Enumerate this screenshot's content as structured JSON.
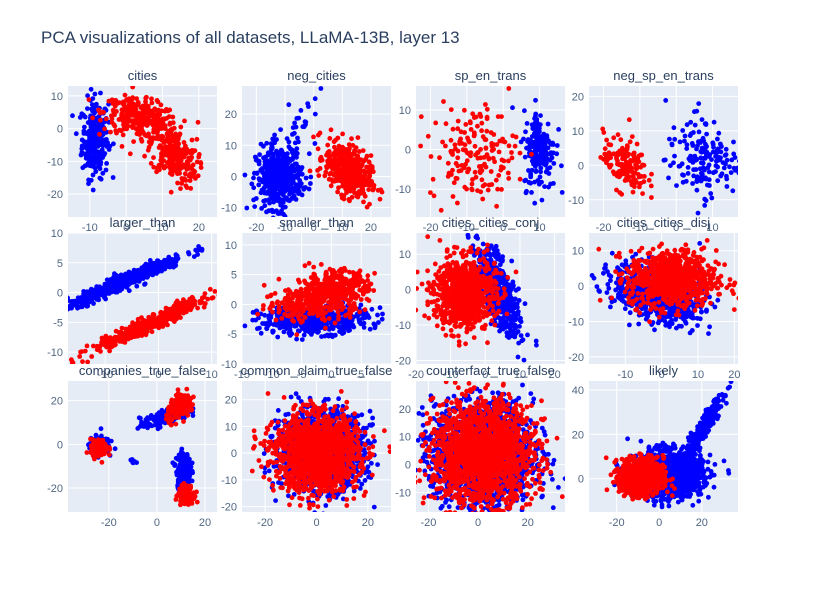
{
  "chart_data": {
    "title": "PCA visualizations of all datasets, LLaMA-13B, layer 13",
    "type": "scatter",
    "colors": {
      "true": "#0000ff",
      "false": "#ff0000",
      "panel_bg": "#e5ecf6",
      "grid": "#ffffff",
      "title": "#2a3f5f",
      "tick": "#506784"
    },
    "panels": [
      {
        "name": "cities",
        "xlim": [
          -16,
          25
        ],
        "ylim": [
          -27,
          13
        ],
        "xticks": [
          -10,
          0,
          10,
          20
        ],
        "yticks": [
          -20,
          -10,
          0,
          10
        ],
        "series": [
          {
            "label": "true",
            "clusters": [
              {
                "cx": -8.5,
                "cy": -3,
                "sx": 1.8,
                "sy": 6,
                "n": 260,
                "r": 0
              }
            ]
          },
          {
            "label": "false",
            "clusters": [
              {
                "cx": 4,
                "cy": 3,
                "sx": 5,
                "sy": 3,
                "n": 300,
                "r": -0.35
              },
              {
                "cx": 13,
                "cy": -8,
                "sx": 3.2,
                "sy": 4.5,
                "n": 250,
                "r": -0.4
              }
            ]
          }
        ]
      },
      {
        "name": "neg_cities",
        "xlim": [
          -25,
          27
        ],
        "ylim": [
          -13,
          29
        ],
        "xticks": [
          -20,
          -10,
          0,
          10,
          20
        ],
        "yticks": [
          -10,
          0,
          10,
          20
        ],
        "series": [
          {
            "label": "true",
            "clusters": [
              {
                "cx": -12,
                "cy": 0,
                "sx": 4,
                "sy": 5,
                "n": 450,
                "r": 0.1
              },
              {
                "cx": -4,
                "cy": 17,
                "sx": 4,
                "sy": 4,
                "n": 25,
                "r": 0.5
              }
            ]
          },
          {
            "label": "false",
            "clusters": [
              {
                "cx": 12,
                "cy": 2,
                "sx": 4,
                "sy": 4.5,
                "n": 420,
                "r": -0.4
              }
            ]
          }
        ]
      },
      {
        "name": "sp_en_trans",
        "xlim": [
          -24,
          17
        ],
        "ylim": [
          -17,
          16
        ],
        "xticks": [
          -20,
          -10,
          0,
          10
        ],
        "yticks": [
          -10,
          0,
          10
        ],
        "series": [
          {
            "label": "true",
            "clusters": [
              {
                "cx": 10,
                "cy": 0,
                "sx": 2.2,
                "sy": 5,
                "n": 180,
                "r": 0
              }
            ]
          },
          {
            "label": "false",
            "clusters": [
              {
                "cx": -8,
                "cy": -1,
                "sx": 6,
                "sy": 6,
                "n": 170,
                "r": 0
              }
            ]
          }
        ]
      },
      {
        "name": "neg_sp_en_trans",
        "xlim": [
          -24,
          17
        ],
        "ylim": [
          -15,
          23
        ],
        "xticks": [
          -20,
          -10,
          0,
          10
        ],
        "yticks": [
          -10,
          0,
          10,
          20
        ],
        "series": [
          {
            "label": "true",
            "clusters": [
              {
                "cx": 7,
                "cy": 1,
                "sx": 5,
                "sy": 5,
                "n": 160,
                "r": 0
              },
              {
                "cx": 7,
                "cy": 14,
                "sx": 2,
                "sy": 2.5,
                "n": 10,
                "r": 0
              }
            ]
          },
          {
            "label": "false",
            "clusters": [
              {
                "cx": -14,
                "cy": 0,
                "sx": 3,
                "sy": 4,
                "n": 150,
                "r": -0.3
              }
            ]
          }
        ]
      },
      {
        "name": "larger_than",
        "xlim": [
          -17,
          11
        ],
        "ylim": [
          -12,
          10
        ],
        "xticks": [
          -10,
          0,
          10
        ],
        "yticks": [
          -10,
          -5,
          0,
          5,
          10
        ],
        "series": [
          {
            "label": "true",
            "clusters": [
              {
                "cx": -6,
                "cy": 2,
                "sx": 5.5,
                "sy": 2.2,
                "n": 500,
                "r": 0.96
              }
            ]
          },
          {
            "label": "false",
            "clusters": [
              {
                "cx": -1,
                "cy": -5,
                "sx": 5.5,
                "sy": 2.3,
                "n": 500,
                "r": 0.96
              }
            ]
          }
        ]
      },
      {
        "name": "smaller_than",
        "xlim": [
          -15,
          10
        ],
        "ylim": [
          -10,
          12
        ],
        "xticks": [
          -15,
          -10,
          -5,
          0,
          5
        ],
        "yticks": [
          -10,
          -5,
          0,
          5,
          10
        ],
        "series": [
          {
            "label": "true",
            "clusters": [
              {
                "cx": -3,
                "cy": -2.5,
                "sx": 4.5,
                "sy": 1.2,
                "n": 500,
                "r": 0.1
              }
            ]
          },
          {
            "label": "false",
            "clusters": [
              {
                "cx": 0,
                "cy": 2,
                "sx": 3,
                "sy": 1.8,
                "n": 450,
                "r": 0.2
              },
              {
                "cx": -6,
                "cy": 0,
                "sx": 2.5,
                "sy": 1.5,
                "n": 120,
                "r": 0
              }
            ]
          }
        ]
      },
      {
        "name": "cities_cities_conj",
        "xlim": [
          -20,
          23
        ],
        "ylim": [
          -21,
          16
        ],
        "xticks": [
          -20,
          -10,
          0,
          10,
          20
        ],
        "yticks": [
          -20,
          -10,
          0,
          10
        ],
        "series": [
          {
            "label": "true",
            "clusters": [
              {
                "cx": 4,
                "cy": -1,
                "sx": 3,
                "sy": 6,
                "n": 550,
                "r": -0.7
              }
            ]
          },
          {
            "label": "false",
            "clusters": [
              {
                "cx": -6,
                "cy": -1,
                "sx": 4.5,
                "sy": 5,
                "n": 800,
                "r": 0
              }
            ]
          }
        ]
      },
      {
        "name": "cities_cities_disj",
        "xlim": [
          -20,
          21
        ],
        "ylim": [
          -22,
          15
        ],
        "xticks": [
          -10,
          0,
          10,
          20
        ],
        "yticks": [
          -20,
          -10,
          0,
          10
        ],
        "series": [
          {
            "label": "true",
            "clusters": [
              {
                "cx": -1,
                "cy": -2,
                "sx": 6,
                "sy": 4,
                "n": 800,
                "r": -0.3
              }
            ]
          },
          {
            "label": "false",
            "clusters": [
              {
                "cx": 3,
                "cy": 2,
                "sx": 6,
                "sy": 4,
                "n": 800,
                "r": 0
              }
            ]
          }
        ]
      },
      {
        "name": "companies_true_false",
        "xlim": [
          -37,
          25
        ],
        "ylim": [
          -31,
          29
        ],
        "xticks": [
          -20,
          0,
          20
        ],
        "yticks": [
          -20,
          0,
          20
        ],
        "series": [
          {
            "label": "true",
            "clusters": [
              {
                "cx": -24,
                "cy": 0,
                "sx": 2,
                "sy": 2,
                "n": 120,
                "r": 0
              },
              {
                "cx": 3,
                "cy": 12,
                "sx": 5,
                "sy": 2.5,
                "n": 150,
                "r": 0.7
              },
              {
                "cx": 11,
                "cy": -12,
                "sx": 1.5,
                "sy": 4,
                "n": 200,
                "r": 0
              },
              {
                "cx": -10,
                "cy": -8,
                "sx": 0.6,
                "sy": 0.6,
                "n": 10,
                "r": 0
              }
            ]
          },
          {
            "label": "false",
            "clusters": [
              {
                "cx": -24,
                "cy": -2,
                "sx": 1.8,
                "sy": 2,
                "n": 120,
                "r": 0
              },
              {
                "cx": 10,
                "cy": 17,
                "sx": 3,
                "sy": 3,
                "n": 150,
                "r": 0.5
              },
              {
                "cx": 12,
                "cy": -23,
                "sx": 1.5,
                "sy": 2,
                "n": 150,
                "r": 0
              }
            ]
          }
        ]
      },
      {
        "name": "common_claim_true_false",
        "xlim": [
          -29,
          29
        ],
        "ylim": [
          -22,
          27
        ],
        "xticks": [
          -20,
          0,
          20
        ],
        "yticks": [
          -20,
          -10,
          0,
          10,
          20
        ],
        "series": [
          {
            "label": "true",
            "clusters": [
              {
                "cx": 2,
                "cy": 1,
                "sx": 8,
                "sy": 7,
                "n": 1500,
                "r": 0
              }
            ]
          },
          {
            "label": "false",
            "clusters": [
              {
                "cx": 0,
                "cy": 0,
                "sx": 8,
                "sy": 7,
                "n": 1500,
                "r": 0
              }
            ]
          }
        ]
      },
      {
        "name": "counterfact_true_false",
        "xlim": [
          -25,
          35
        ],
        "ylim": [
          -17,
          30
        ],
        "xticks": [
          -20,
          0,
          20
        ],
        "yticks": [
          -10,
          0,
          10,
          20
        ],
        "series": [
          {
            "label": "true",
            "clusters": [
              {
                "cx": 2,
                "cy": 4,
                "sx": 10,
                "sy": 9,
                "n": 1800,
                "r": 0
              }
            ]
          },
          {
            "label": "false",
            "clusters": [
              {
                "cx": 2,
                "cy": 4,
                "sx": 10,
                "sy": 9,
                "n": 1800,
                "r": 0
              }
            ]
          }
        ]
      },
      {
        "name": "likely",
        "xlim": [
          -33,
          37
        ],
        "ylim": [
          -15,
          44
        ],
        "xticks": [
          -20,
          0,
          20
        ],
        "yticks": [
          0,
          20,
          40
        ],
        "series": [
          {
            "label": "true",
            "clusters": [
              {
                "cx": 4,
                "cy": 2,
                "sx": 8,
                "sy": 5,
                "n": 1500,
                "r": 0
              },
              {
                "cx": 20,
                "cy": 22,
                "sx": 5,
                "sy": 8,
                "n": 250,
                "r": 0.95
              }
            ]
          },
          {
            "label": "false",
            "clusters": [
              {
                "cx": -8,
                "cy": 1,
                "sx": 5,
                "sy": 4,
                "n": 900,
                "r": 0
              }
            ]
          }
        ]
      }
    ]
  }
}
